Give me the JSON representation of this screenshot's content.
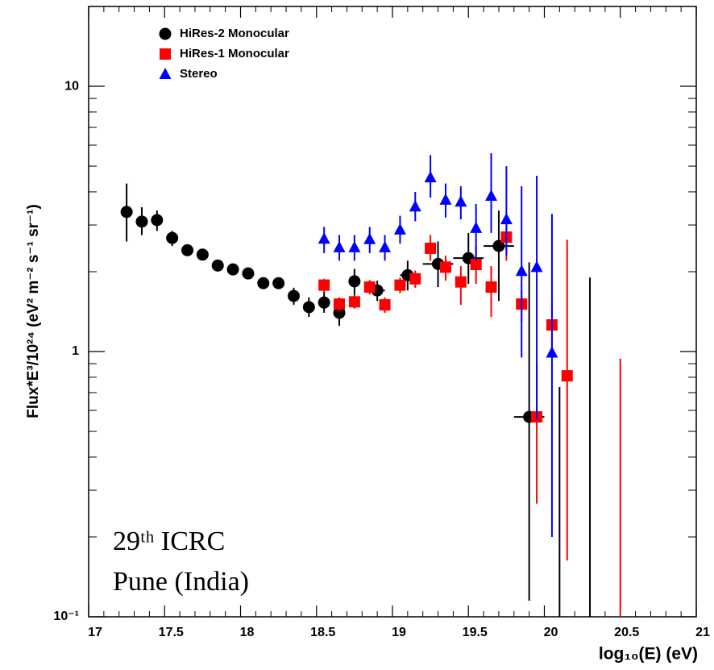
{
  "chart_data": {
    "type": "scatter",
    "y_label": "Flux*E³/10²⁴ (eV² m⁻² s⁻¹ sr⁻¹)",
    "x_label": "log₁₀(E) (eV)",
    "annotations": [
      "29ᵗʰ ICRC",
      "Pune (India)"
    ],
    "xlim": [
      17,
      21
    ],
    "xticks": [
      17,
      17.5,
      18,
      18.5,
      19,
      19.5,
      20,
      20.5,
      21
    ],
    "xminorticks": [
      17.1,
      17.2,
      17.3,
      17.4,
      17.6,
      17.7,
      17.8,
      17.9,
      18.1,
      18.2,
      18.3,
      18.4,
      18.6,
      18.7,
      18.8,
      18.9,
      19.1,
      19.2,
      19.3,
      19.4,
      19.6,
      19.7,
      19.8,
      19.9,
      20.1,
      20.2,
      20.3,
      20.4,
      20.6,
      20.7,
      20.8,
      20.9
    ],
    "ylim": [
      0.1,
      20
    ],
    "ylog": true,
    "yticks": [
      {
        "value": 0.1,
        "label": "10⁻¹"
      },
      1,
      10
    ],
    "yminorticks": [
      0.2,
      0.3,
      0.4,
      0.5,
      0.6,
      0.7,
      0.8,
      0.9,
      2,
      3,
      4,
      5,
      6,
      7,
      8,
      9,
      20
    ],
    "legend": "upper left",
    "series": [
      {
        "name": "HiRes-2 Monocular",
        "color": "#000000",
        "marker": "circle",
        "x": [
          17.25,
          17.35,
          17.45,
          17.55,
          17.65,
          17.75,
          17.85,
          17.95,
          18.05,
          18.15,
          18.25,
          18.35,
          18.45,
          18.55,
          18.65,
          18.75,
          18.9,
          19.1,
          19.3,
          19.5,
          19.7,
          19.9,
          20.1,
          20.3
        ],
        "values": [
          3.36,
          3.09,
          3.13,
          2.68,
          2.41,
          2.32,
          2.11,
          2.04,
          1.97,
          1.81,
          1.81,
          1.62,
          1.47,
          1.53,
          1.4,
          1.84,
          1.7,
          1.94,
          2.14,
          2.25,
          2.5,
          0.567,
          null,
          null
        ],
        "lower": [
          2.6,
          2.75,
          2.85,
          2.5,
          2.3,
          2.22,
          2.03,
          1.96,
          1.89,
          1.72,
          1.72,
          1.5,
          1.35,
          1.4,
          1.25,
          1.6,
          1.55,
          1.7,
          1.75,
          1.8,
          1.55,
          0.115,
          0.1,
          0.1
        ],
        "upper": [
          4.3,
          3.5,
          3.4,
          2.85,
          2.52,
          2.42,
          2.2,
          2.12,
          2.05,
          1.9,
          1.9,
          1.74,
          1.6,
          1.68,
          1.55,
          2.05,
          1.85,
          2.2,
          2.6,
          2.8,
          3.4,
          2.17,
          0.735,
          1.9
        ],
        "xerr": [
          null,
          null,
          null,
          null,
          null,
          null,
          null,
          null,
          null,
          null,
          null,
          null,
          null,
          null,
          null,
          null,
          0.05,
          0.05,
          0.1,
          0.1,
          0.1,
          0.1,
          null,
          null
        ]
      },
      {
        "name": "HiRes-1 Monocular",
        "color": "#ff0000",
        "marker": "square",
        "x": [
          18.55,
          18.65,
          18.75,
          18.85,
          18.95,
          19.05,
          19.15,
          19.25,
          19.35,
          19.45,
          19.55,
          19.65,
          19.75,
          19.85,
          19.95,
          20.05,
          20.15,
          20.5
        ],
        "values": [
          1.78,
          1.51,
          1.54,
          1.75,
          1.5,
          1.78,
          1.88,
          2.45,
          2.08,
          1.83,
          2.13,
          1.75,
          2.7,
          1.51,
          0.567,
          1.26,
          0.81,
          null
        ],
        "lower": [
          1.68,
          1.42,
          1.45,
          1.64,
          1.4,
          1.66,
          1.74,
          2.2,
          1.85,
          1.5,
          1.8,
          1.35,
          2.2,
          1.3,
          0.267,
          0.95,
          0.163,
          0.1
        ],
        "upper": [
          1.88,
          1.6,
          1.63,
          1.86,
          1.6,
          1.9,
          2.02,
          2.75,
          2.3,
          2.1,
          2.5,
          2.1,
          3.0,
          1.7,
          0.9,
          1.55,
          2.64,
          0.94
        ]
      },
      {
        "name": "Stereo",
        "color": "#0000ff",
        "marker": "triangle",
        "x": [
          18.55,
          18.65,
          18.75,
          18.85,
          18.95,
          19.05,
          19.15,
          19.25,
          19.35,
          19.45,
          19.55,
          19.65,
          19.75,
          19.85,
          19.95,
          20.05
        ],
        "values": [
          2.66,
          2.47,
          2.47,
          2.65,
          2.47,
          2.88,
          3.52,
          4.53,
          3.73,
          3.67,
          2.92,
          3.86,
          3.15,
          2.01,
          2.08,
          0.99
        ],
        "lower": [
          2.35,
          2.2,
          2.2,
          2.35,
          2.2,
          2.55,
          3.1,
          3.8,
          3.2,
          3.15,
          2.2,
          2.8,
          2.3,
          0.95,
          0.55,
          0.2
        ],
        "upper": [
          2.95,
          2.75,
          2.75,
          2.95,
          2.75,
          3.25,
          4.0,
          5.5,
          4.3,
          4.2,
          3.6,
          5.6,
          5.0,
          4.2,
          4.6,
          3.3
        ]
      }
    ]
  }
}
